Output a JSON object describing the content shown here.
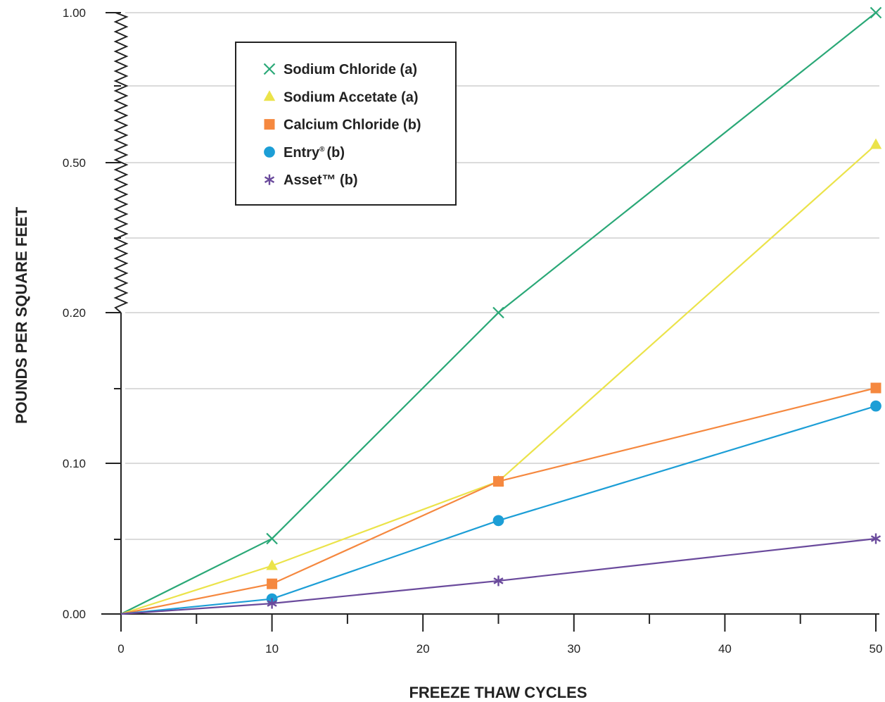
{
  "chart_data": {
    "type": "line",
    "title": "",
    "xlabel": "FREEZE THAW CYCLES",
    "ylabel": "POUNDS PER SQUARE FEET",
    "xlim": [
      0,
      50
    ],
    "x_ticks": [
      "0",
      "10",
      "20",
      "30",
      "40",
      "50"
    ],
    "y_scale": "broken",
    "y_tick_labels": [
      "0.00",
      "0.10",
      "0.20",
      "0.50",
      "1.00"
    ],
    "y_axis_break": "between 0.20 and 1.00",
    "grid": true,
    "legend_position": "top-left",
    "series": [
      {
        "name": "Sodium Chloride (a)",
        "marker": "x",
        "color": "#2aa877",
        "x": [
          0,
          10,
          25,
          50
        ],
        "y": [
          0,
          0.05,
          0.2,
          1.0
        ]
      },
      {
        "name": "Sodium Accetate (a)",
        "marker": "triangle",
        "color": "#ebe34a",
        "x": [
          0,
          10,
          25,
          50
        ],
        "y": [
          0,
          0.032,
          0.088,
          0.56
        ]
      },
      {
        "name": "Calcium Chloride (b)",
        "marker": "square",
        "color": "#f5883f",
        "x": [
          0,
          10,
          25,
          50
        ],
        "y": [
          0,
          0.02,
          0.088,
          0.15
        ]
      },
      {
        "name": "Entry",
        "name_suffix": "(b)",
        "name_mark": "®",
        "marker": "circle",
        "color": "#1c9ed6",
        "x": [
          0,
          10,
          25,
          50
        ],
        "y": [
          0,
          0.01,
          0.062,
          0.138
        ]
      },
      {
        "name": "Asset™ (b)",
        "marker": "asterisk",
        "color": "#6a4a9c",
        "x": [
          0,
          10,
          25,
          50
        ],
        "y": [
          0,
          0.007,
          0.022,
          0.05
        ]
      }
    ]
  }
}
